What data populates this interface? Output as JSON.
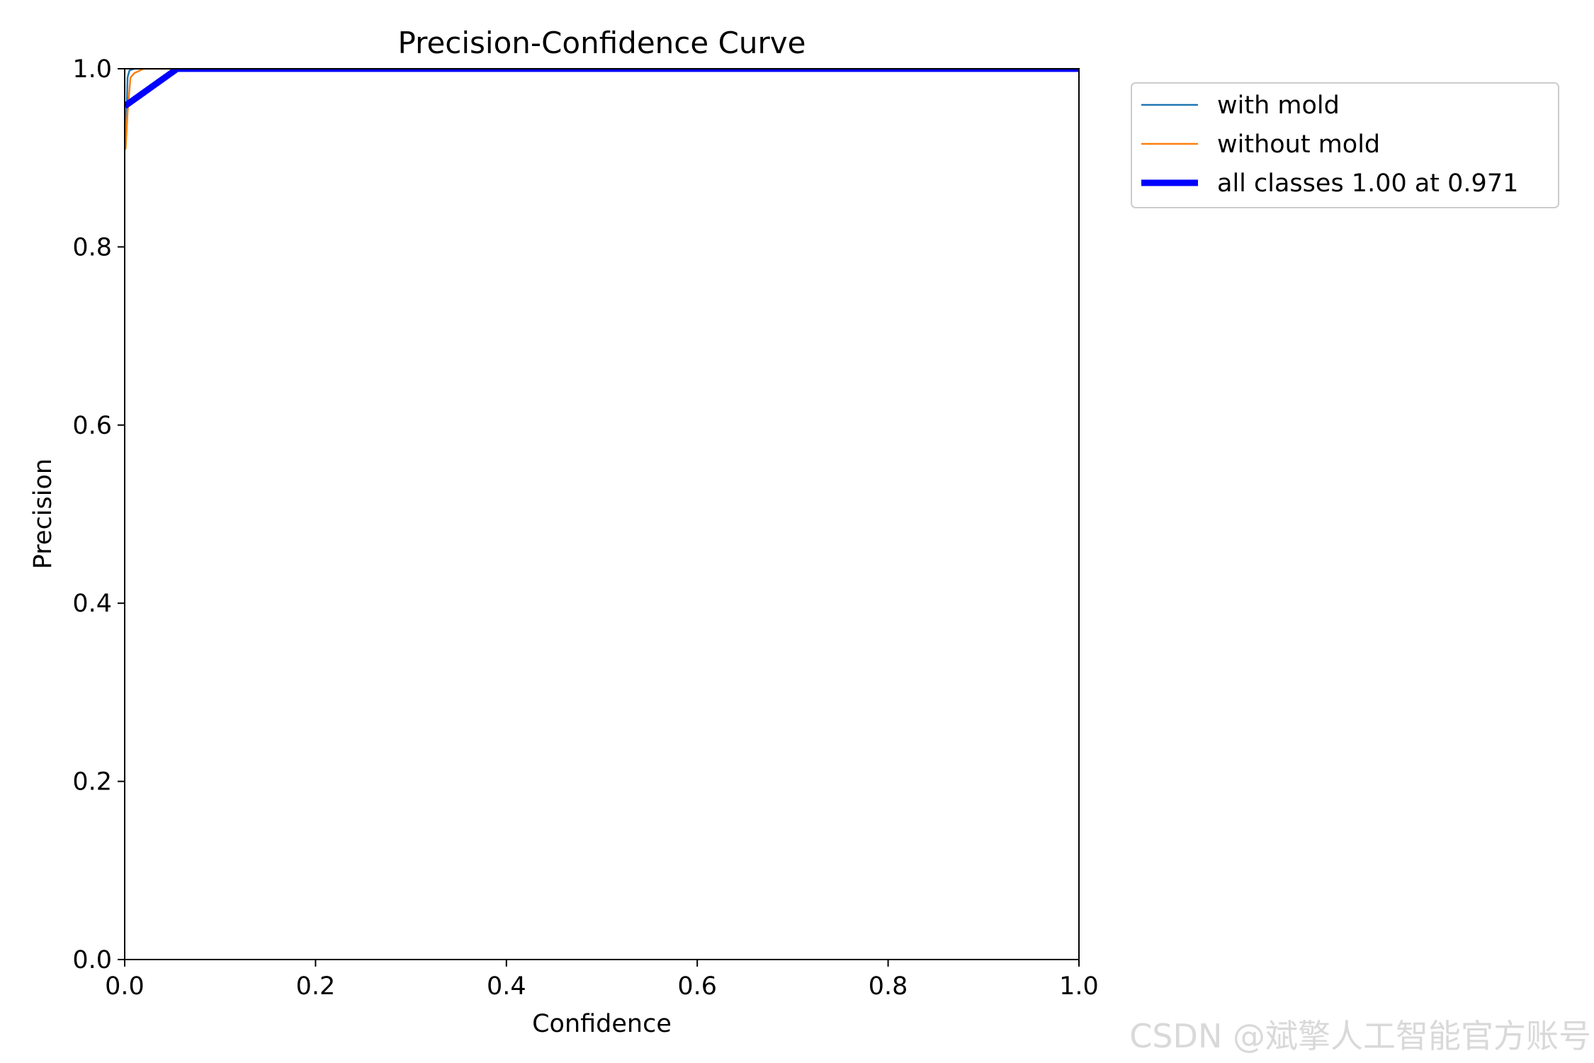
{
  "chart_data": {
    "type": "line",
    "title": "Precision-Confidence Curve",
    "xlabel": "Confidence",
    "ylabel": "Precision",
    "xlim": [
      0,
      1
    ],
    "ylim": [
      0,
      1
    ],
    "xticks": [
      "0.0",
      "0.2",
      "0.4",
      "0.6",
      "0.8",
      "1.0"
    ],
    "yticks": [
      "0.0",
      "0.2",
      "0.4",
      "0.6",
      "0.8",
      "1.0"
    ],
    "grid": false,
    "legend_position": "outside-top-right",
    "series": [
      {
        "name": "with mold",
        "color": "#1f77b4",
        "x": [
          0.001,
          0.002,
          0.003,
          0.005,
          0.01,
          0.05,
          1.0
        ],
        "y": [
          0.915,
          0.95,
          0.99,
          0.998,
          1.0,
          1.0,
          1.0
        ]
      },
      {
        "name": "without mold",
        "color": "#ff7f0e",
        "x": [
          0.0,
          0.001,
          0.003,
          0.006,
          0.01,
          0.02,
          0.05,
          1.0
        ],
        "y": [
          0.96,
          0.91,
          0.95,
          0.99,
          0.995,
          1.0,
          1.0,
          1.0
        ]
      },
      {
        "name": "all classes 1.00 at 0.971",
        "color": "#0000ff",
        "bold": true,
        "x": [
          0.0,
          0.055,
          1.0
        ],
        "y": [
          0.958,
          1.0,
          1.0
        ]
      }
    ]
  },
  "watermark": "CSDN @斌擎人工智能官方账号"
}
